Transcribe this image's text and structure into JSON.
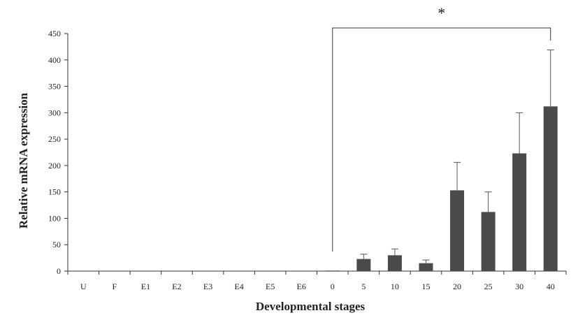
{
  "chart_data": {
    "type": "bar",
    "title": "",
    "xlabel": "Developmental stages",
    "ylabel": "Relative mRNA expression",
    "ylim": [
      0,
      450
    ],
    "yticks": [
      0,
      50,
      100,
      150,
      200,
      250,
      300,
      350,
      400,
      450
    ],
    "categories": [
      "U",
      "F",
      "E1",
      "E2",
      "E3",
      "E4",
      "E5",
      "E6",
      "0",
      "5",
      "10",
      "15",
      "20",
      "25",
      "30",
      "40"
    ],
    "values": [
      0,
      0,
      0,
      0,
      0,
      0,
      0,
      0,
      1,
      23,
      30,
      15,
      153,
      112,
      223,
      312
    ],
    "error": [
      0,
      0,
      0,
      0,
      0,
      0,
      0,
      0,
      0,
      9,
      12,
      6,
      53,
      38,
      77,
      107
    ],
    "bar_color": "#4a4a4a",
    "grid": false,
    "legend": "none",
    "significance": {
      "from": "0",
      "to": "40",
      "label": "*"
    }
  }
}
